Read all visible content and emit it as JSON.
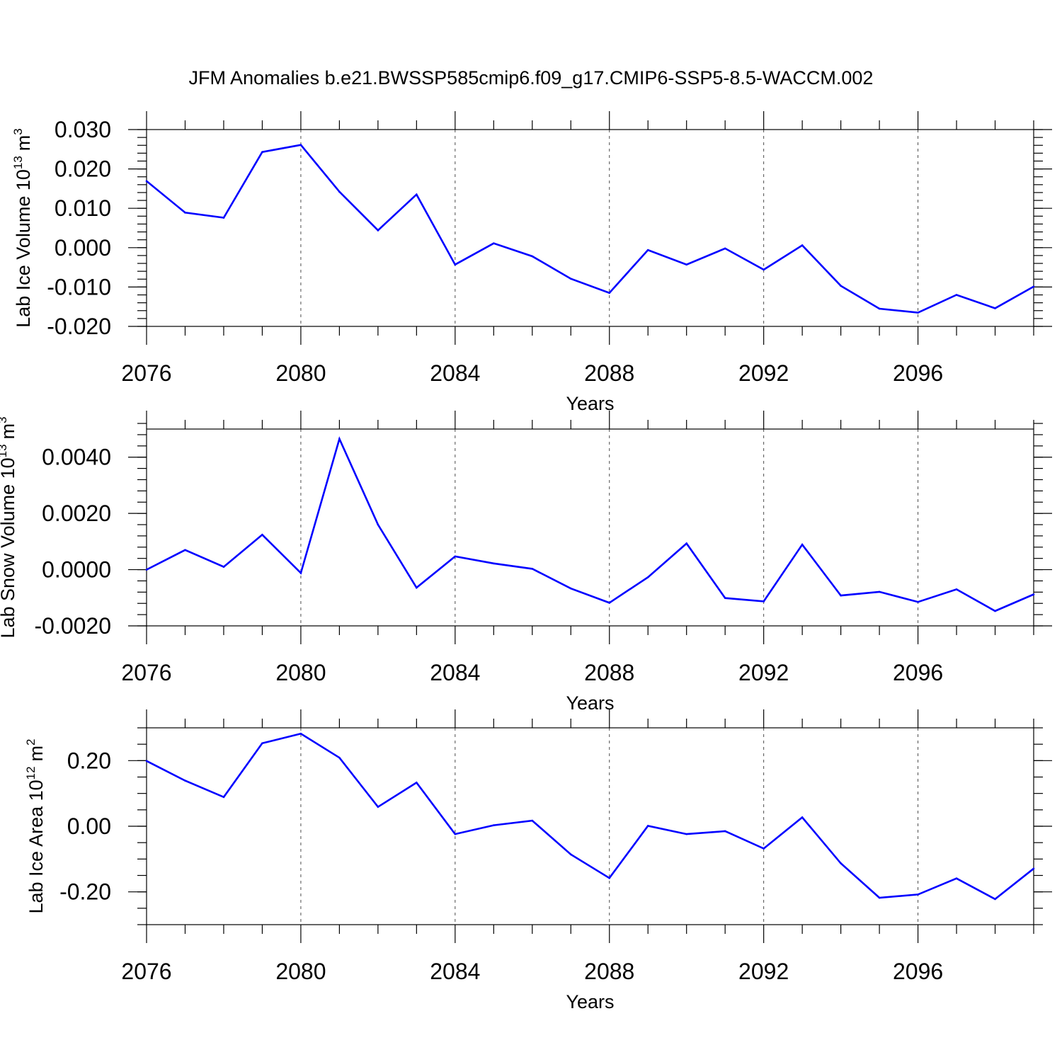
{
  "figure": {
    "title": "JFM Anomalies b.e21.BWSSP585cmip6.f09_g17.CMIP6-SSP5-8.5-WACCM.002"
  },
  "chart_data": [
    {
      "type": "line",
      "name": "ice-volume",
      "ylabel": "Lab Ice Volume 10",
      "ylabel_exponent": "13",
      "ylabel_unit": "m",
      "ylabel_unit_exponent": "3",
      "xlabel": "Years",
      "xlim": [
        2076,
        2099
      ],
      "ylim": [
        -0.02,
        0.03
      ],
      "xticks": [
        2076,
        2080,
        2084,
        2088,
        2092,
        2096
      ],
      "xtick_labels": [
        "2076",
        "2080",
        "2084",
        "2088",
        "2092",
        "2096"
      ],
      "yticks": [
        -0.02,
        -0.01,
        0.0,
        0.01,
        0.02,
        0.03
      ],
      "ytick_labels": [
        "-0.020",
        "-0.010",
        "0.000",
        "0.010",
        "0.020",
        "0.030"
      ],
      "y_minor_step": 0.002,
      "x": [
        2076,
        2077,
        2078,
        2079,
        2080,
        2081,
        2082,
        2083,
        2084,
        2085,
        2086,
        2087,
        2088,
        2089,
        2090,
        2091,
        2092,
        2093,
        2094,
        2095,
        2096,
        2097,
        2098,
        2099
      ],
      "values": [
        0.0169,
        0.0089,
        0.0076,
        0.0243,
        0.0261,
        0.0142,
        0.0044,
        0.0135,
        -0.0043,
        0.0011,
        -0.0022,
        -0.0079,
        -0.0115,
        -0.0006,
        -0.0043,
        -0.0002,
        -0.0056,
        0.0006,
        -0.0097,
        -0.0155,
        -0.0165,
        -0.012,
        -0.0154,
        -0.0099
      ]
    },
    {
      "type": "line",
      "name": "snow-volume",
      "ylabel": "Lab Snow Volume 10",
      "ylabel_exponent": "13",
      "ylabel_unit": "m",
      "ylabel_unit_exponent": "3",
      "xlabel": "Years",
      "xlim": [
        2076,
        2099
      ],
      "ylim": [
        -0.002,
        0.005
      ],
      "xticks": [
        2076,
        2080,
        2084,
        2088,
        2092,
        2096
      ],
      "xtick_labels": [
        "2076",
        "2080",
        "2084",
        "2088",
        "2092",
        "2096"
      ],
      "yticks": [
        -0.002,
        0.0,
        0.002,
        0.004
      ],
      "ytick_labels": [
        "-0.0020",
        "0.0000",
        "0.0020",
        "0.0040"
      ],
      "y_minor_step": 0.0004,
      "x": [
        2076,
        2077,
        2078,
        2079,
        2080,
        2081,
        2082,
        2083,
        2084,
        2085,
        2086,
        2087,
        2088,
        2089,
        2090,
        2091,
        2092,
        2093,
        2094,
        2095,
        2096,
        2097,
        2098,
        2099
      ],
      "values": [
        0.0,
        0.0007,
        0.0001,
        0.00124,
        -0.00012,
        0.00465,
        0.0016,
        -0.00064,
        0.00047,
        0.00022,
        3e-05,
        -0.00067,
        -0.00118,
        -0.00027,
        0.00093,
        -0.00101,
        -0.00113,
        0.00089,
        -0.00092,
        -0.00079,
        -0.00115,
        -0.0007,
        -0.00147,
        -0.00088
      ]
    },
    {
      "type": "line",
      "name": "ice-area",
      "ylabel": "Lab Ice Area 10",
      "ylabel_exponent": "12",
      "ylabel_unit": "m",
      "ylabel_unit_exponent": "2",
      "xlabel": "Years",
      "xlim": [
        2076,
        2099
      ],
      "ylim": [
        -0.3,
        0.3
      ],
      "xticks": [
        2076,
        2080,
        2084,
        2088,
        2092,
        2096
      ],
      "xtick_labels": [
        "2076",
        "2080",
        "2084",
        "2088",
        "2092",
        "2096"
      ],
      "yticks": [
        -0.2,
        0.0,
        0.2
      ],
      "ytick_labels": [
        "-0.20",
        "0.00",
        "0.20"
      ],
      "y_minor_step": 0.05,
      "x": [
        2076,
        2077,
        2078,
        2079,
        2080,
        2081,
        2082,
        2083,
        2084,
        2085,
        2086,
        2087,
        2088,
        2089,
        2090,
        2091,
        2092,
        2093,
        2094,
        2095,
        2096,
        2097,
        2098,
        2099
      ],
      "values": [
        0.199,
        0.139,
        0.089,
        0.253,
        0.282,
        0.209,
        0.059,
        0.133,
        -0.024,
        0.003,
        0.017,
        -0.086,
        -0.158,
        0.001,
        -0.024,
        -0.015,
        -0.068,
        0.027,
        -0.113,
        -0.218,
        -0.208,
        -0.159,
        -0.222,
        -0.129
      ]
    }
  ]
}
